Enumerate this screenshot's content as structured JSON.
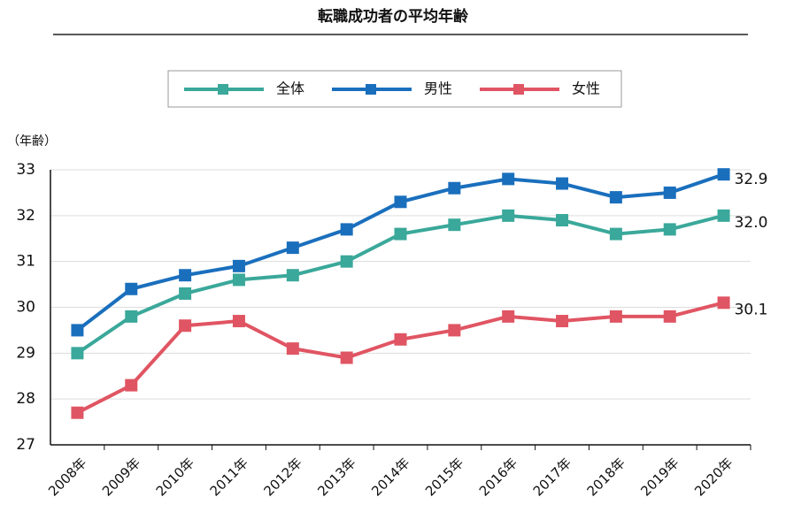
{
  "chart_data": {
    "type": "line",
    "title": "転職成功者の平均年齢",
    "y_label": "（年齢）",
    "categories": [
      "2008年",
      "2009年",
      "2010年",
      "2011年",
      "2012年",
      "2013年",
      "2014年",
      "2015年",
      "2016年",
      "2017年",
      "2018年",
      "2019年",
      "2020年"
    ],
    "series": [
      {
        "name": "全体",
        "color": "#3aa89a",
        "values": [
          29.0,
          29.8,
          30.3,
          30.6,
          30.7,
          31.0,
          31.6,
          31.8,
          32.0,
          31.9,
          31.6,
          31.7,
          32.0
        ],
        "value_labels": [
          null,
          null,
          null,
          null,
          null,
          null,
          null,
          null,
          null,
          null,
          null,
          null,
          "32.0"
        ]
      },
      {
        "name": "男性",
        "color": "#1a6fbd",
        "values": [
          29.5,
          30.4,
          30.7,
          30.9,
          31.3,
          31.7,
          32.3,
          32.6,
          32.8,
          32.7,
          32.4,
          32.5,
          32.9
        ],
        "value_labels": [
          null,
          null,
          null,
          null,
          null,
          null,
          null,
          null,
          null,
          null,
          null,
          null,
          "32.9"
        ]
      },
      {
        "name": "女性",
        "color": "#e05563",
        "values": [
          27.7,
          28.3,
          29.6,
          29.7,
          29.1,
          28.9,
          29.3,
          29.5,
          29.8,
          29.7,
          29.8,
          29.8,
          30.1
        ],
        "value_labels": [
          null,
          null,
          null,
          null,
          null,
          null,
          null,
          null,
          null,
          null,
          null,
          null,
          "30.1"
        ]
      }
    ],
    "ylim": [
      27,
      33
    ],
    "yticks": [
      27,
      28,
      29,
      30,
      31,
      32,
      33
    ],
    "grid": true,
    "legend": "top"
  }
}
